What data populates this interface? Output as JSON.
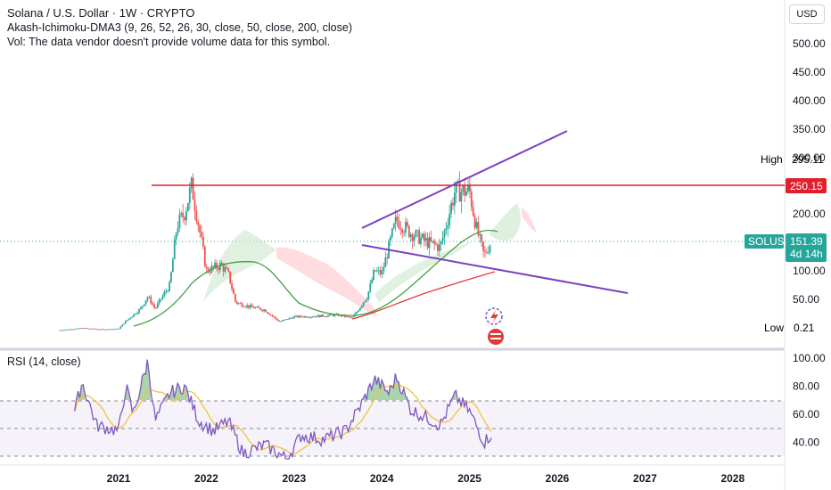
{
  "header": {
    "symbol_title": "Solana / U.S. Dollar · 1W · CRYPTO",
    "indicator_line": "Akash-Ichimoku-DMA3 (9, 26, 52, 26, 30, close, 50, close, 200, close)",
    "volume_note": "Vol: The data vendor doesn't provide volume data for this symbol."
  },
  "currency_button": "USD",
  "rsi_title": "RSI (14, close)",
  "labels": {
    "high_text": "High",
    "high_value": "295.11",
    "level_value": "250.15",
    "symbol_tag": "SOLUSD",
    "current_price": "151.39",
    "countdown": "4d 14h",
    "low_text": "Low",
    "low_value": "0.21"
  },
  "colors": {
    "up": "#26a69a",
    "down": "#ef5350",
    "trendline": "#7e3fbf",
    "level_line": "#e0202c",
    "ma50": "#43a047",
    "ma200": "#e53935",
    "rsi_line": "#7e57c2",
    "rsi_ma": "#f5c13b",
    "price_tag": "#26a69a"
  },
  "chart_data": [
    {
      "type": "candlestick",
      "title": "Solana / U.S. Dollar · 1W · CRYPTO",
      "x_axis": {
        "ticks": [
          "2021",
          "2022",
          "2023",
          "2024",
          "2025",
          "2026",
          "2027",
          "2028"
        ]
      },
      "y_axis": {
        "ticks": [
          "500.00",
          "450.00",
          "400.00",
          "350.00",
          "300.00",
          "200.00",
          "100.00",
          "50.00"
        ],
        "scale": "log"
      },
      "series_close": [
        {
          "date": "2020-05",
          "value": 1
        },
        {
          "date": "2020-08",
          "value": 4
        },
        {
          "date": "2020-11",
          "value": 2
        },
        {
          "date": "2021-01",
          "value": 3
        },
        {
          "date": "2021-02",
          "value": 15
        },
        {
          "date": "2021-04",
          "value": 35
        },
        {
          "date": "2021-05",
          "value": 55
        },
        {
          "date": "2021-06",
          "value": 35
        },
        {
          "date": "2021-08",
          "value": 75
        },
        {
          "date": "2021-09",
          "value": 180
        },
        {
          "date": "2021-10",
          "value": 200
        },
        {
          "date": "2021-11",
          "value": 250
        },
        {
          "date": "2021-12",
          "value": 175
        },
        {
          "date": "2022-01",
          "value": 100
        },
        {
          "date": "2022-03",
          "value": 110
        },
        {
          "date": "2022-04",
          "value": 95
        },
        {
          "date": "2022-05",
          "value": 45
        },
        {
          "date": "2022-07",
          "value": 38
        },
        {
          "date": "2022-09",
          "value": 33
        },
        {
          "date": "2022-11",
          "value": 14
        },
        {
          "date": "2023-01",
          "value": 22
        },
        {
          "date": "2023-04",
          "value": 23
        },
        {
          "date": "2023-07",
          "value": 25
        },
        {
          "date": "2023-09",
          "value": 20
        },
        {
          "date": "2023-11",
          "value": 55
        },
        {
          "date": "2023-12",
          "value": 100
        },
        {
          "date": "2024-01",
          "value": 95
        },
        {
          "date": "2024-03",
          "value": 190
        },
        {
          "date": "2024-05",
          "value": 165
        },
        {
          "date": "2024-07",
          "value": 150
        },
        {
          "date": "2024-09",
          "value": 140
        },
        {
          "date": "2024-11",
          "value": 240
        },
        {
          "date": "2025-01",
          "value": 240
        },
        {
          "date": "2025-02",
          "value": 170
        },
        {
          "date": "2025-03",
          "value": 125
        },
        {
          "date": "2025-04",
          "value": 151.39
        }
      ],
      "horizontal_level": 250.15,
      "all_time_high": 295.11,
      "all_time_low": 0.21,
      "current_price": 151.39
    },
    {
      "type": "line",
      "title": "RSI (14, close)",
      "y_axis": {
        "ticks": [
          "100.00",
          "80.00",
          "60.00",
          "40.00"
        ],
        "ylim": [
          28,
          105
        ]
      },
      "bands": [
        30,
        50,
        70
      ],
      "rsi": [
        {
          "date": "2020-07",
          "value": 62
        },
        {
          "date": "2020-08",
          "value": 83
        },
        {
          "date": "2020-10",
          "value": 52
        },
        {
          "date": "2021-01",
          "value": 48
        },
        {
          "date": "2021-02",
          "value": 80
        },
        {
          "date": "2021-03",
          "value": 60
        },
        {
          "date": "2021-05",
          "value": 98
        },
        {
          "date": "2021-06",
          "value": 55
        },
        {
          "date": "2021-08",
          "value": 75
        },
        {
          "date": "2021-10",
          "value": 80
        },
        {
          "date": "2021-12",
          "value": 55
        },
        {
          "date": "2022-02",
          "value": 48
        },
        {
          "date": "2022-04",
          "value": 55
        },
        {
          "date": "2022-06",
          "value": 32
        },
        {
          "date": "2022-09",
          "value": 38
        },
        {
          "date": "2022-12",
          "value": 28
        },
        {
          "date": "2023-02",
          "value": 45
        },
        {
          "date": "2023-05",
          "value": 42
        },
        {
          "date": "2023-08",
          "value": 48
        },
        {
          "date": "2023-10",
          "value": 65
        },
        {
          "date": "2023-12",
          "value": 85
        },
        {
          "date": "2024-02",
          "value": 75
        },
        {
          "date": "2024-03",
          "value": 87
        },
        {
          "date": "2024-05",
          "value": 63
        },
        {
          "date": "2024-07",
          "value": 58
        },
        {
          "date": "2024-09",
          "value": 52
        },
        {
          "date": "2024-11",
          "value": 73
        },
        {
          "date": "2025-01",
          "value": 62
        },
        {
          "date": "2025-03",
          "value": 40
        },
        {
          "date": "2025-04",
          "value": 46
        }
      ]
    }
  ]
}
